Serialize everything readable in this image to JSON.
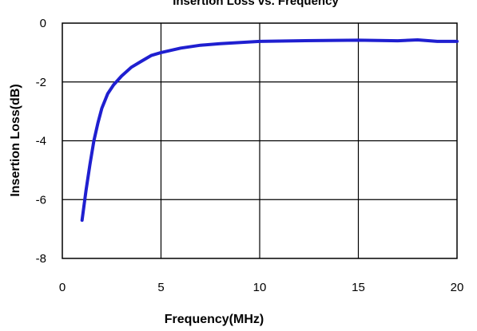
{
  "chart_data": {
    "type": "line",
    "title": "Insertion Loss  vs. Frequency",
    "xlabel": "Frequency(MHz)",
    "ylabel": "Insertion Loss(dB)",
    "xlim": [
      0,
      20
    ],
    "ylim": [
      -8,
      0
    ],
    "x_ticks": [
      "0",
      "5",
      "10",
      "15",
      "20"
    ],
    "y_ticks": [
      "0",
      "-2",
      "-4",
      "-6",
      "-8"
    ],
    "grid": true,
    "legend": "none",
    "line_color": "#1f1fd0",
    "series": [
      {
        "x": [
          1.0,
          1.2,
          1.4,
          1.6,
          1.8,
          2.0,
          2.3,
          2.6,
          3.0,
          3.5,
          4.0,
          4.5,
          5.0,
          6.0,
          7.0,
          8.0,
          10.0,
          12.0,
          15.0,
          17.0,
          18.0,
          19.0,
          20.0
        ],
        "y": [
          -6.7,
          -5.7,
          -4.8,
          -4.0,
          -3.4,
          -2.9,
          -2.4,
          -2.1,
          -1.8,
          -1.5,
          -1.3,
          -1.1,
          -1.0,
          -0.85,
          -0.75,
          -0.7,
          -0.62,
          -0.6,
          -0.58,
          -0.6,
          -0.57,
          -0.62,
          -0.62
        ]
      }
    ]
  }
}
